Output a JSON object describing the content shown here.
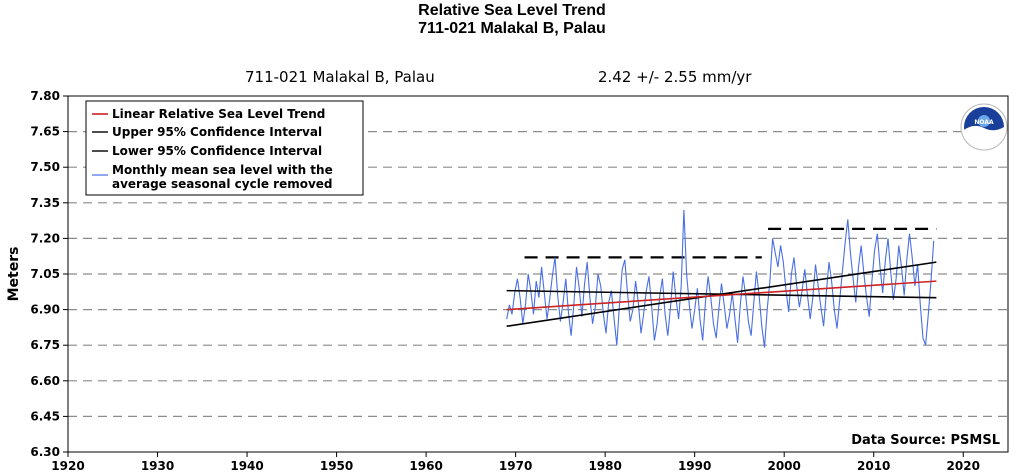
{
  "title_line1": "Relative Sea Level Trend",
  "title_line2": "711-021 Malakal B, Palau",
  "subtitle_station": "711-021 Malakal B, Palau",
  "subtitle_rate": "2.42 +/-  2.55 mm/yr",
  "logo_text": "NOAA",
  "data_source": "Data Source: PSMSL",
  "chart_data": {
    "type": "line",
    "ylabel": "Meters",
    "xlabel": "",
    "xlim": [
      1920,
      2025
    ],
    "ylim": [
      6.3,
      7.8
    ],
    "x_ticks": [
      1920,
      1930,
      1940,
      1950,
      1960,
      1970,
      1980,
      1990,
      2000,
      2010,
      2020
    ],
    "y_ticks": [
      "6.30",
      "6.45",
      "6.60",
      "6.75",
      "6.90",
      "7.05",
      "7.20",
      "7.35",
      "7.50",
      "7.65",
      "7.80"
    ],
    "grid": "horizontal dashed",
    "legend_position": "top-left",
    "legend": [
      "Linear Relative Sea Level Trend",
      "Upper 95% Confidence Interval",
      "Lower 95% Confidence Interval",
      "Monthly mean sea level with the average seasonal cycle removed"
    ],
    "series": [
      {
        "name": "Linear Relative Sea Level Trend",
        "color": "#cc2222",
        "x": [
          1969,
          2017
        ],
        "y": [
          6.9,
          7.02
        ]
      },
      {
        "name": "Upper 95% Confidence Interval",
        "color": "#000000",
        "x": [
          1969,
          2017
        ],
        "y": [
          6.98,
          6.95
        ]
      },
      {
        "name": "Lower 95% Confidence Interval",
        "color": "#000000",
        "x": [
          1969,
          2017
        ],
        "y": [
          6.83,
          7.1
        ]
      },
      {
        "name": "Monthly mean sea level with the average seasonal cycle removed",
        "color": "#4a6fe3",
        "x": [
          1969.0,
          1969.3,
          1969.6,
          1969.9,
          1970.2,
          1970.5,
          1970.8,
          1971.1,
          1971.4,
          1971.7,
          1972.0,
          1972.3,
          1972.6,
          1972.9,
          1973.2,
          1973.5,
          1973.8,
          1974.1,
          1974.4,
          1974.7,
          1975.0,
          1975.3,
          1975.6,
          1975.9,
          1976.2,
          1976.5,
          1976.8,
          1977.1,
          1977.4,
          1977.7,
          1978.0,
          1978.3,
          1978.6,
          1978.9,
          1979.2,
          1979.5,
          1979.8,
          1980.1,
          1980.4,
          1980.7,
          1981.0,
          1981.3,
          1981.6,
          1981.9,
          1982.2,
          1982.5,
          1982.8,
          1983.1,
          1983.4,
          1983.7,
          1984.0,
          1984.3,
          1984.6,
          1984.9,
          1985.2,
          1985.5,
          1985.8,
          1986.1,
          1986.4,
          1986.7,
          1987.0,
          1987.3,
          1987.6,
          1987.9,
          1988.2,
          1988.5,
          1988.8,
          1989.1,
          1989.4,
          1989.7,
          1990.0,
          1990.3,
          1990.6,
          1990.9,
          1991.2,
          1991.5,
          1991.8,
          1992.1,
          1992.4,
          1992.7,
          1993.0,
          1993.3,
          1993.6,
          1993.9,
          1994.2,
          1994.5,
          1994.8,
          1995.1,
          1995.4,
          1995.7,
          1996.0,
          1996.3,
          1996.6,
          1996.9,
          1997.2,
          1997.5,
          1997.8,
          1998.1,
          1998.4,
          1998.7,
          1999.0,
          1999.3,
          1999.6,
          1999.9,
          2000.2,
          2000.5,
          2000.8,
          2001.1,
          2001.4,
          2001.7,
          2002.0,
          2002.3,
          2002.6,
          2002.9,
          2003.2,
          2003.5,
          2003.8,
          2004.1,
          2004.4,
          2004.7,
          2005.0,
          2005.3,
          2005.6,
          2005.9,
          2006.2,
          2006.5,
          2006.8,
          2007.1,
          2007.4,
          2007.7,
          2008.0,
          2008.3,
          2008.6,
          2008.9,
          2009.2,
          2009.5,
          2009.8,
          2010.1,
          2010.4,
          2010.7,
          2011.0,
          2011.3,
          2011.6,
          2011.9,
          2012.2,
          2012.5,
          2012.8,
          2013.1,
          2013.4,
          2013.7,
          2014.0,
          2014.3,
          2014.6,
          2014.9,
          2015.2,
          2015.5,
          2015.8,
          2016.1,
          2016.4,
          2016.7
        ],
        "y": [
          6.86,
          6.92,
          6.88,
          6.97,
          7.03,
          6.95,
          6.84,
          6.92,
          7.05,
          6.98,
          6.88,
          7.02,
          6.95,
          7.08,
          6.97,
          6.86,
          6.94,
          7.04,
          7.12,
          6.96,
          6.85,
          6.93,
          7.03,
          6.89,
          6.79,
          6.92,
          7.08,
          6.99,
          6.87,
          7.01,
          7.1,
          6.95,
          6.84,
          6.91,
          7.05,
          7.0,
          6.88,
          6.8,
          6.93,
          6.98,
          6.86,
          6.75,
          6.92,
          7.07,
          7.11,
          6.97,
          6.85,
          6.9,
          7.02,
          6.93,
          6.8,
          6.88,
          6.98,
          7.04,
          6.91,
          6.77,
          6.84,
          6.96,
          7.03,
          6.88,
          6.79,
          6.91,
          7.06,
          6.95,
          6.86,
          7.0,
          7.32,
          7.05,
          6.92,
          6.82,
          6.9,
          6.99,
          6.86,
          6.77,
          6.93,
          7.04,
          6.95,
          6.84,
          6.78,
          6.9,
          7.01,
          6.92,
          6.82,
          6.88,
          6.97,
          6.86,
          6.76,
          6.92,
          7.04,
          6.96,
          6.85,
          6.79,
          6.93,
          7.06,
          6.96,
          6.83,
          6.74,
          6.9,
          7.02,
          7.2,
          7.14,
          7.08,
          7.17,
          7.1,
          6.98,
          6.89,
          7.05,
          7.12,
          7.0,
          6.91,
          6.98,
          7.07,
          6.96,
          6.86,
          6.95,
          7.09,
          7.0,
          6.91,
          6.83,
          6.97,
          7.1,
          7.02,
          6.9,
          6.82,
          6.94,
          7.06,
          7.18,
          7.28,
          7.14,
          7.03,
          6.93,
          7.08,
          7.17,
          7.05,
          6.95,
          6.87,
          7.02,
          7.15,
          7.22,
          7.08,
          6.97,
          7.11,
          7.2,
          7.06,
          6.94,
          7.03,
          7.17,
          7.08,
          6.96,
          7.11,
          7.22,
          7.12,
          7.0,
          7.09,
          6.92,
          6.78,
          6.75,
          6.88,
          7.02,
          7.19
        ]
      }
    ],
    "annotations": [
      {
        "type": "dashed-level",
        "x": [
          1971,
          1997.5
        ],
        "y": 7.12
      },
      {
        "type": "dashed-level",
        "x": [
          1998.2,
          2017
        ],
        "y": 7.24
      }
    ]
  }
}
